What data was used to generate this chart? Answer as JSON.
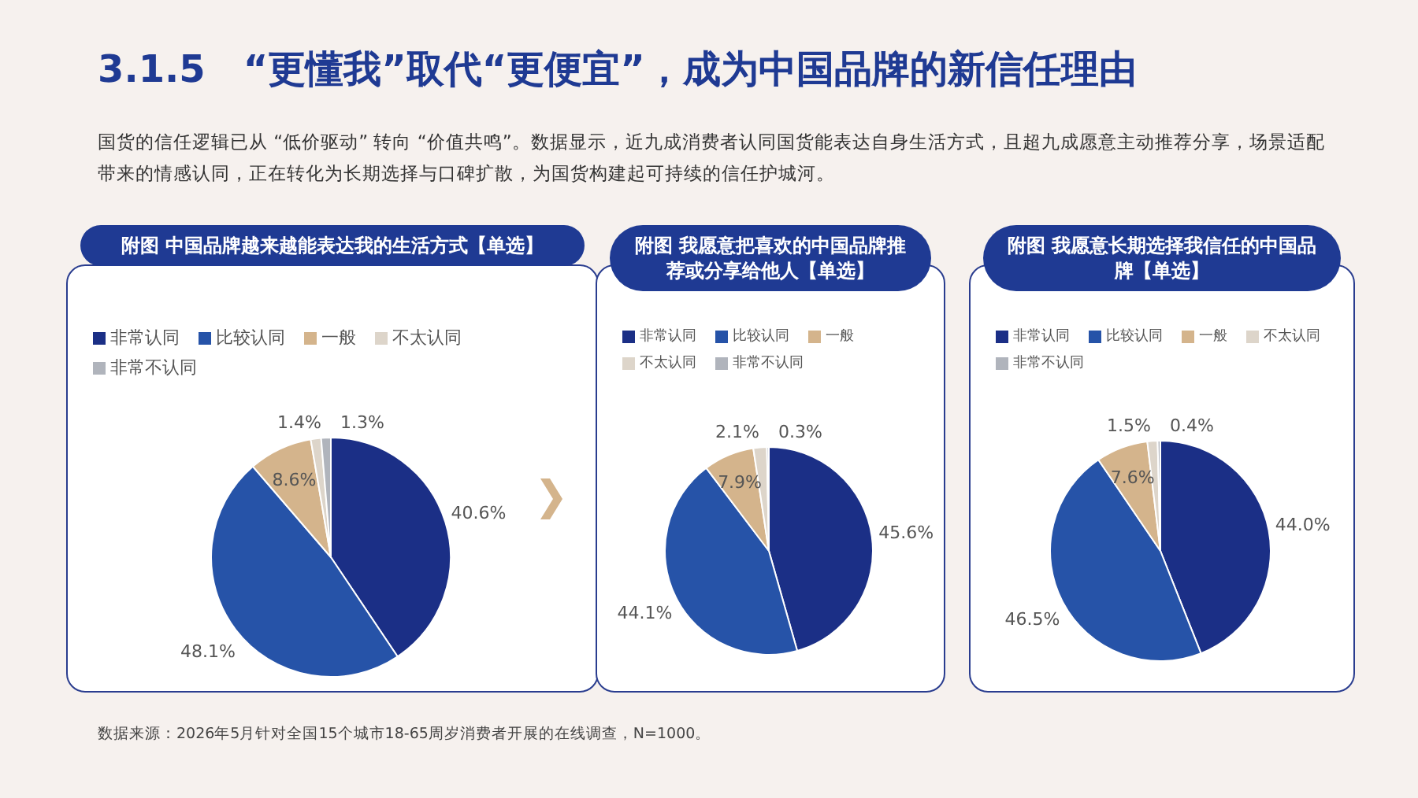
{
  "chart_data": [
    {
      "type": "other",
      "title": "3.1.5　“更懂我”取代“更便宜”，成为中国品牌的新信任理由",
      "subtitle": "国货的信任逻辑已从 “低价驱动” 转向 “价值共鸣”。数据显示，近九成消费者认同国货能表达自身生活方式，且超九成愿意主动推荐分享，场景适配带来的情感认同，正在转化为长期选择与口碑扩散，为国货构建起可持续的信任护城河。",
      "annotations": [
        "数据来源：2026年5月针对全国15个城市18-65周岁消费者开展的在线调查，N=1000。"
      ]
    },
    {
      "type": "pie",
      "title": "附图  中国品牌越来越能表达我的生活方式【单选】",
      "categories": [
        "非常认同",
        "比较认同",
        "一般",
        "不太认同",
        "非常不认同"
      ],
      "values": [
        40.6,
        48.1,
        8.6,
        1.4,
        1.3
      ],
      "value_labels": [
        "40.6%",
        "48.1%",
        "8.6%",
        "1.4%",
        "1.3%"
      ],
      "colors": [
        "#1b2f86",
        "#2653a8",
        "#d4b48c",
        "#ddd5ca",
        "#b0b4bc"
      ],
      "legend": "top"
    },
    {
      "type": "pie",
      "title": "附图  我愿意把喜欢的中国品牌推荐或分享给他人【单选】",
      "categories": [
        "非常认同",
        "比较认同",
        "一般",
        "不太认同",
        "非常不认同"
      ],
      "values": [
        45.6,
        44.1,
        7.9,
        2.1,
        0.3
      ],
      "value_labels": [
        "45.6%",
        "44.1%",
        "7.9%",
        "2.1%",
        "0.3%"
      ],
      "colors": [
        "#1b2f86",
        "#2653a8",
        "#d4b48c",
        "#ddd5ca",
        "#b0b4bc"
      ],
      "legend": "top"
    },
    {
      "type": "pie",
      "title": "附图  我愿意长期选择我信任的中国品牌【单选】",
      "categories": [
        "非常认同",
        "比较认同",
        "一般",
        "不太认同",
        "非常不认同"
      ],
      "values": [
        44.0,
        46.5,
        7.6,
        1.5,
        0.4
      ],
      "value_labels": [
        "44.0%",
        "46.5%",
        "7.6%",
        "1.5%",
        "0.4%"
      ],
      "colors": [
        "#1b2f86",
        "#2653a8",
        "#d4b48c",
        "#ddd5ca",
        "#b0b4bc"
      ],
      "legend": "top"
    }
  ]
}
